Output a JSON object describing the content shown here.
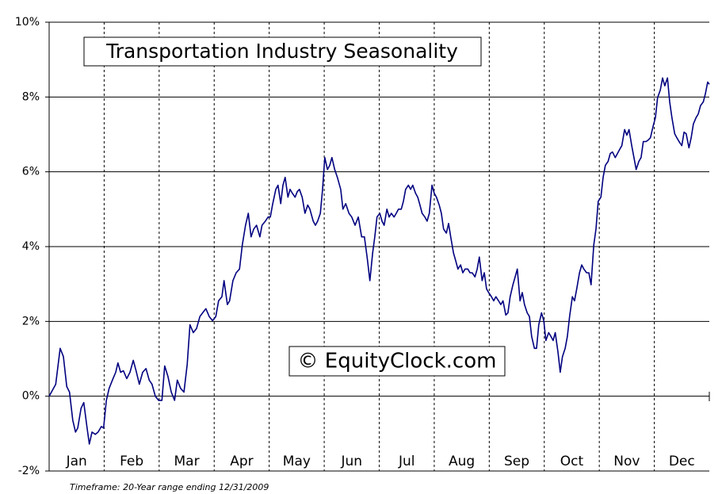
{
  "chart_data": {
    "type": "line",
    "title": "Transportation Industry Seasonality",
    "watermark": "© EquityClock.com",
    "footnote": "Timeframe: 20-Year range ending 12/31/2009",
    "xlim": [
      0,
      12
    ],
    "xticks": [
      {
        "value": 0.5,
        "label": "Jan"
      },
      {
        "value": 1.5,
        "label": "Feb"
      },
      {
        "value": 2.5,
        "label": "Mar"
      },
      {
        "value": 3.5,
        "label": "Apr"
      },
      {
        "value": 4.5,
        "label": "May"
      },
      {
        "value": 5.5,
        "label": "Jun"
      },
      {
        "value": 6.5,
        "label": "Jul"
      },
      {
        "value": 7.5,
        "label": "Aug"
      },
      {
        "value": 8.5,
        "label": "Sep"
      },
      {
        "value": 9.5,
        "label": "Oct"
      },
      {
        "value": 10.5,
        "label": "Nov"
      },
      {
        "value": 11.5,
        "label": "Dec"
      }
    ],
    "ylim": [
      -2,
      10
    ],
    "yticks": [
      {
        "value": -2,
        "label": "-2%"
      },
      {
        "value": 0,
        "label": "0%"
      },
      {
        "value": 2,
        "label": "2%"
      },
      {
        "value": 4,
        "label": "4%"
      },
      {
        "value": 6,
        "label": "6%"
      },
      {
        "value": 8,
        "label": "8%"
      },
      {
        "value": 10,
        "label": "10%"
      }
    ],
    "grid": true,
    "series": [
      {
        "color": "#000080",
        "x": [
          0,
          0.12,
          0.2,
          0.26,
          0.32,
          0.37,
          0.43,
          0.48,
          0.52,
          0.58,
          0.63,
          0.69,
          0.73,
          0.78,
          0.84,
          0.89,
          0.95,
          0.99,
          1.04,
          1.09,
          1.15,
          1.21,
          1.25,
          1.3,
          1.35,
          1.41,
          1.47,
          1.53,
          1.58,
          1.64,
          1.7,
          1.76,
          1.82,
          1.87,
          1.93,
          1.99,
          2.05,
          2.1,
          2.16,
          2.22,
          2.28,
          2.33,
          2.39,
          2.45,
          2.51,
          2.56,
          2.62,
          2.68,
          2.74,
          2.79,
          2.85,
          2.91,
          2.97,
          3.03,
          3.08,
          3.14,
          3.18,
          3.24,
          3.28,
          3.34,
          3.4,
          3.46,
          3.51,
          3.57,
          3.62,
          3.67,
          3.72,
          3.77,
          3.83,
          3.87,
          3.93,
          3.98,
          4.02,
          4.06,
          4.12,
          4.16,
          4.21,
          4.25,
          4.29,
          4.34,
          4.38,
          4.42,
          4.47,
          4.51,
          4.55,
          4.6,
          4.65,
          4.7,
          4.74,
          4.8,
          4.84,
          4.88,
          4.93,
          4.97,
          5.01,
          5.06,
          5.1,
          5.14,
          5.19,
          5.24,
          5.3,
          5.34,
          5.39,
          5.45,
          5.5,
          5.56,
          5.62,
          5.68,
          5.73,
          5.78,
          5.83,
          5.88,
          5.92,
          5.96,
          6.01,
          6.05,
          6.09,
          6.14,
          6.18,
          6.22,
          6.27,
          6.31,
          6.35,
          6.4,
          6.44,
          6.48,
          6.53,
          6.57,
          6.61,
          6.66,
          6.7,
          6.74,
          6.78,
          6.83,
          6.87,
          6.91,
          6.96,
          7.0,
          7.04,
          7.09,
          7.13,
          7.17,
          7.22,
          7.26,
          7.3,
          7.35,
          7.39,
          7.43,
          7.48,
          7.52,
          7.56,
          7.61,
          7.65,
          7.69,
          7.74,
          7.78,
          7.82,
          7.87,
          7.91,
          7.95,
          7.99,
          8.04,
          8.08,
          8.12,
          8.17,
          8.21,
          8.25,
          8.3,
          8.34,
          8.38,
          8.43,
          8.47,
          8.51,
          8.56,
          8.6,
          8.64,
          8.69,
          8.73,
          8.77,
          8.82,
          8.86,
          8.9,
          8.95,
          8.99,
          9.03,
          9.08,
          9.12,
          9.16,
          9.2,
          9.25,
          9.29,
          9.33,
          9.38,
          9.42,
          9.46,
          9.51,
          9.55,
          9.59,
          9.64,
          9.68,
          9.72,
          9.77,
          9.81,
          9.85,
          9.9,
          9.94,
          9.98,
          10.03,
          10.07,
          10.11,
          10.16,
          10.2,
          10.24,
          10.29,
          10.33,
          10.37,
          10.41,
          10.46,
          10.5,
          10.54,
          10.59,
          10.63,
          10.67,
          10.72,
          10.76,
          10.8,
          10.85,
          10.89,
          10.93,
          10.98,
          11.02,
          11.06,
          11.11,
          11.15,
          11.19,
          11.24,
          11.28,
          11.32,
          11.37,
          11.41,
          11.45,
          11.5,
          11.54,
          11.58,
          11.63,
          11.67,
          11.71,
          11.76,
          11.8,
          11.84,
          11.89,
          11.93,
          11.97,
          12.0
        ],
        "values": [
          0,
          0.32,
          1.28,
          1.06,
          0.26,
          0.11,
          -0.64,
          -0.96,
          -0.85,
          -0.32,
          -0.17,
          -0.85,
          -1.28,
          -0.96,
          -1.02,
          -0.96,
          -0.81,
          -0.85,
          -0.11,
          0.21,
          0.43,
          0.64,
          0.89,
          0.64,
          0.68,
          0.47,
          0.64,
          0.96,
          0.68,
          0.32,
          0.64,
          0.74,
          0.43,
          0.32,
          0,
          -0.11,
          -0.11,
          0.81,
          0.53,
          0.11,
          -0.11,
          0.43,
          0.21,
          0.11,
          0.85,
          1.91,
          1.7,
          1.81,
          2.13,
          2.23,
          2.34,
          2.13,
          2.02,
          2.13,
          2.55,
          2.66,
          3.09,
          2.45,
          2.55,
          3.09,
          3.3,
          3.4,
          4.04,
          4.57,
          4.89,
          4.26,
          4.47,
          4.57,
          4.26,
          4.57,
          4.68,
          4.79,
          4.79,
          5.11,
          5.53,
          5.64,
          5.15,
          5.64,
          5.85,
          5.32,
          5.53,
          5.43,
          5.32,
          5.47,
          5.53,
          5.32,
          4.89,
          5.11,
          5.0,
          4.68,
          4.57,
          4.68,
          4.89,
          5.53,
          6.38,
          6.06,
          6.17,
          6.38,
          6.06,
          5.85,
          5.53,
          5.0,
          5.15,
          4.89,
          4.79,
          4.57,
          4.79,
          4.26,
          4.26,
          3.72,
          3.09,
          3.83,
          4.26,
          4.79,
          4.89,
          4.68,
          4.57,
          5.0,
          4.79,
          4.89,
          4.79,
          4.89,
          5.0,
          5.0,
          5.21,
          5.53,
          5.64,
          5.53,
          5.64,
          5.43,
          5.32,
          5.11,
          4.89,
          4.79,
          4.68,
          4.89,
          5.64,
          5.43,
          5.32,
          5.11,
          4.89,
          4.47,
          4.36,
          4.62,
          4.26,
          3.83,
          3.62,
          3.4,
          3.51,
          3.3,
          3.4,
          3.4,
          3.3,
          3.3,
          3.19,
          3.4,
          3.72,
          3.09,
          3.3,
          2.87,
          2.77,
          2.66,
          2.55,
          2.66,
          2.55,
          2.45,
          2.55,
          2.17,
          2.23,
          2.66,
          2.98,
          3.19,
          3.4,
          2.55,
          2.77,
          2.45,
          2.23,
          2.13,
          1.6,
          1.28,
          1.28,
          1.91,
          2.23,
          2.02,
          1.49,
          1.7,
          1.6,
          1.49,
          1.7,
          1.17,
          0.64,
          1.06,
          1.28,
          1.6,
          2.13,
          2.66,
          2.55,
          2.87,
          3.3,
          3.51,
          3.4,
          3.3,
          3.3,
          2.98,
          4.04,
          4.47,
          5.21,
          5.32,
          5.85,
          6.17,
          6.28,
          6.49,
          6.53,
          6.38,
          6.49,
          6.6,
          6.7,
          7.13,
          6.98,
          7.13,
          6.7,
          6.38,
          6.06,
          6.28,
          6.38,
          6.81,
          6.81,
          6.85,
          6.91,
          7.23,
          7.45,
          7.98,
          8.19,
          8.51,
          8.3,
          8.51,
          7.87,
          7.45,
          7.02,
          6.91,
          6.81,
          6.7,
          7.06,
          7.02,
          6.64,
          6.91,
          7.28,
          7.45,
          7.55,
          7.77,
          7.87,
          8.09,
          8.4,
          8.34
        ]
      }
    ]
  }
}
